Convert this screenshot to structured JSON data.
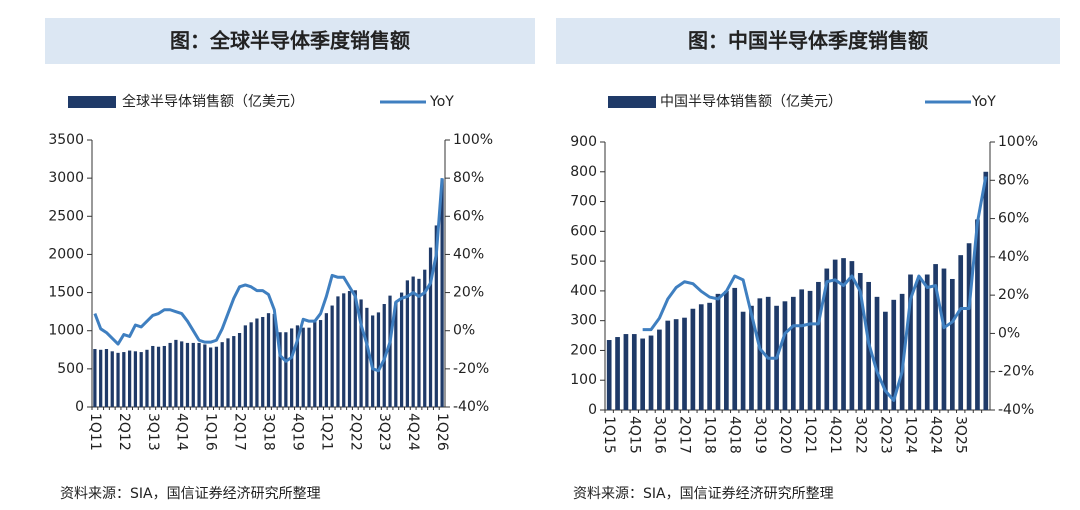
{
  "chart_data": [
    {
      "type": "combo",
      "title": "图：全球半导体季度销售额",
      "source": "资料来源：SIA，国信证券经济研究所整理",
      "categories": [
        "1Q11",
        null,
        null,
        null,
        null,
        "2Q12",
        null,
        null,
        null,
        null,
        "3Q13",
        null,
        null,
        null,
        null,
        "4Q14",
        null,
        null,
        null,
        null,
        "1Q16",
        null,
        null,
        null,
        null,
        "2Q17",
        null,
        null,
        null,
        null,
        "3Q18",
        null,
        null,
        null,
        null,
        "4Q19",
        null,
        null,
        null,
        null,
        "1Q21",
        null,
        null,
        null,
        null,
        "2Q22",
        null,
        null,
        null,
        null,
        "3Q23",
        null,
        null,
        null,
        null,
        "4Q24",
        null,
        null,
        null,
        null,
        "1Q26"
      ],
      "series": [
        {
          "name": "全球半导体销售额（亿美元）",
          "color": "#1f3a68",
          "kind": "bar",
          "values": [
            760,
            750,
            760,
            730,
            710,
            720,
            740,
            730,
            720,
            750,
            800,
            790,
            800,
            840,
            880,
            860,
            840,
            840,
            840,
            820,
            780,
            790,
            850,
            900,
            930,
            970,
            1070,
            1110,
            1160,
            1180,
            1230,
            1220,
            980,
            980,
            1030,
            1070,
            1040,
            1040,
            1140,
            1140,
            1230,
            1330,
            1450,
            1490,
            1520,
            1530,
            1410,
            1300,
            1200,
            1240,
            1350,
            1460,
            1370,
            1500,
            1660,
            1710,
            1680,
            1800,
            2090,
            2380,
            2990
          ]
        },
        {
          "name": "YoY",
          "color": "#3f7fc0",
          "kind": "line",
          "axis": "y2",
          "values": [
            9,
            1,
            -1,
            -4,
            -7,
            -2,
            -3,
            3,
            2,
            5,
            8,
            9,
            11,
            11,
            10,
            9,
            5,
            0,
            -5,
            -6,
            -6,
            -5,
            1,
            9,
            17,
            23,
            24,
            23,
            21,
            21,
            19,
            11,
            -13,
            -16,
            -14,
            -5,
            6,
            5,
            5,
            9,
            18,
            29,
            28,
            28,
            23,
            18,
            3,
            -7,
            -20,
            -21,
            -15,
            -6,
            15,
            17,
            18,
            20,
            18,
            20,
            25,
            40,
            80
          ]
        }
      ],
      "ylim": [
        0,
        3500
      ],
      "yticks": [
        0,
        500,
        1000,
        1500,
        2000,
        2500,
        3000,
        3500
      ],
      "y2lim": [
        -40,
        100
      ],
      "y2ticks": [
        {
          "value": -40,
          "label": "-40%"
        },
        {
          "value": -20,
          "label": "-20%"
        },
        {
          "value": 0,
          "label": "0%"
        },
        {
          "value": 20,
          "label": "20%"
        },
        {
          "value": 40,
          "label": "40%"
        },
        {
          "value": 60,
          "label": "60%"
        },
        {
          "value": 80,
          "label": "80%"
        },
        {
          "value": 100,
          "label": "100%"
        }
      ],
      "grid": false
    },
    {
      "type": "combo",
      "title": "图：中国半导体季度销售额",
      "source": "资料来源：SIA，国信证券经济研究所整理",
      "categories": [
        "1Q15",
        null,
        null,
        "4Q15",
        null,
        null,
        "3Q16",
        null,
        null,
        "2Q17",
        null,
        null,
        "1Q18",
        null,
        null,
        "4Q18",
        null,
        null,
        "3Q19",
        null,
        null,
        "2Q20",
        null,
        null,
        "1Q21",
        null,
        null,
        "4Q21",
        null,
        null,
        "3Q22",
        null,
        null,
        "2Q23",
        null,
        null,
        "1Q24",
        null,
        null,
        "4Q24",
        null,
        null,
        "3Q25",
        null,
        null,
        null
      ],
      "series": [
        {
          "name": "中国半导体销售额（亿美元）",
          "color": "#1f3a68",
          "kind": "bar",
          "values": [
            235,
            245,
            255,
            255,
            240,
            250,
            270,
            300,
            305,
            310,
            340,
            355,
            360,
            390,
            400,
            410,
            330,
            350,
            375,
            380,
            350,
            365,
            380,
            405,
            400,
            430,
            475,
            505,
            510,
            500,
            460,
            430,
            380,
            330,
            370,
            390,
            455,
            440,
            455,
            490,
            475,
            440,
            520,
            560,
            640,
            800
          ]
        },
        {
          "name": "YoY",
          "color": "#3f7fc0",
          "kind": "line",
          "axis": "y2",
          "values": [
            null,
            null,
            null,
            null,
            2,
            2,
            8,
            18,
            24,
            27,
            26,
            22,
            19,
            18,
            22,
            30,
            28,
            10,
            -8,
            -13,
            -13,
            0,
            4,
            4,
            5,
            5,
            27,
            28,
            25,
            30,
            22,
            -5,
            -20,
            -30,
            -35,
            -20,
            18,
            30,
            24,
            25,
            3,
            6,
            13,
            13,
            58,
            82
          ]
        }
      ],
      "ylim": [
        0,
        900
      ],
      "yticks": [
        0,
        100,
        200,
        300,
        400,
        500,
        600,
        700,
        800,
        900
      ],
      "y2lim": [
        -40,
        100
      ],
      "y2ticks": [
        {
          "value": -40,
          "label": "-40%"
        },
        {
          "value": -20,
          "label": "-20%"
        },
        {
          "value": 0,
          "label": "0%"
        },
        {
          "value": 20,
          "label": "20%"
        },
        {
          "value": 40,
          "label": "40%"
        },
        {
          "value": 60,
          "label": "60%"
        },
        {
          "value": 80,
          "label": "80%"
        },
        {
          "value": 100,
          "label": "100%"
        }
      ],
      "grid": false
    }
  ]
}
